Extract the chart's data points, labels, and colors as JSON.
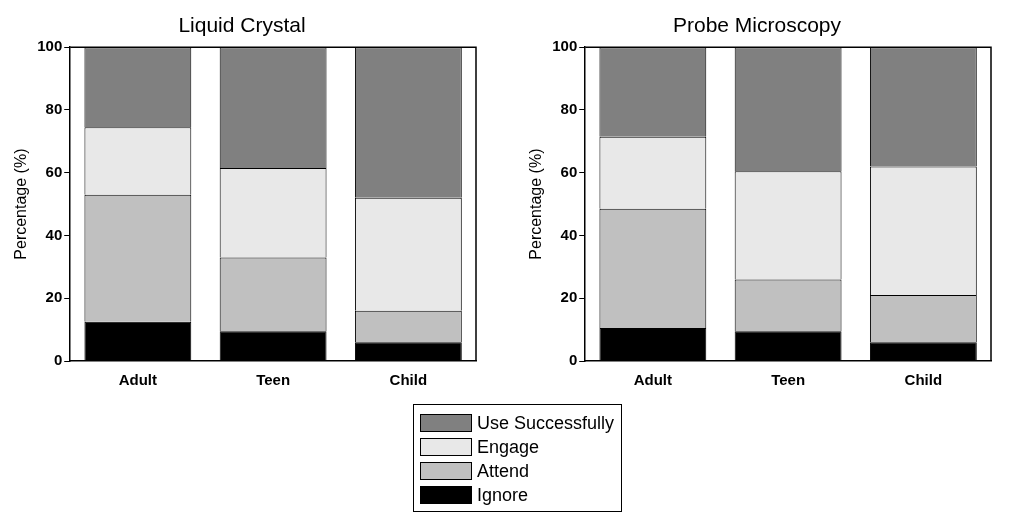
{
  "chart_data": [
    {
      "type": "bar",
      "title": "Liquid Crystal",
      "ylabel": "Percentage (%)",
      "categories": [
        "Adult",
        "Teen",
        "Child"
      ],
      "stacked": true,
      "ylim": [
        0,
        100
      ],
      "yticks": [
        0,
        20,
        40,
        60,
        80,
        100
      ],
      "grid": false,
      "legend": "bottom",
      "series": [
        {
          "name": "Ignore",
          "color": "#000000",
          "values": [
            12.5,
            9.5,
            6
          ]
        },
        {
          "name": "Attend",
          "color": "#c0c0c0",
          "values": [
            40.5,
            23.5,
            10
          ]
        },
        {
          "name": "Engage",
          "color": "#e8e8e8",
          "values": [
            21.5,
            28.5,
            36
          ]
        },
        {
          "name": "Use Successfully",
          "color": "#808080",
          "values": [
            25.5,
            38.5,
            48
          ]
        }
      ]
    },
    {
      "type": "bar",
      "title": "Probe Microscopy",
      "ylabel": "Percentage (%)",
      "categories": [
        "Adult",
        "Teen",
        "Child"
      ],
      "stacked": true,
      "ylim": [
        0,
        100
      ],
      "yticks": [
        0,
        20,
        40,
        60,
        80,
        100
      ],
      "grid": false,
      "legend": "bottom",
      "series": [
        {
          "name": "Ignore",
          "color": "#000000",
          "values": [
            10.5,
            9.5,
            6
          ]
        },
        {
          "name": "Attend",
          "color": "#c0c0c0",
          "values": [
            38,
            16.5,
            15
          ]
        },
        {
          "name": "Engage",
          "color": "#e8e8e8",
          "values": [
            23,
            34.5,
            41
          ]
        },
        {
          "name": "Use Successfully",
          "color": "#808080",
          "values": [
            28.5,
            39.5,
            38
          ]
        }
      ]
    }
  ]
}
